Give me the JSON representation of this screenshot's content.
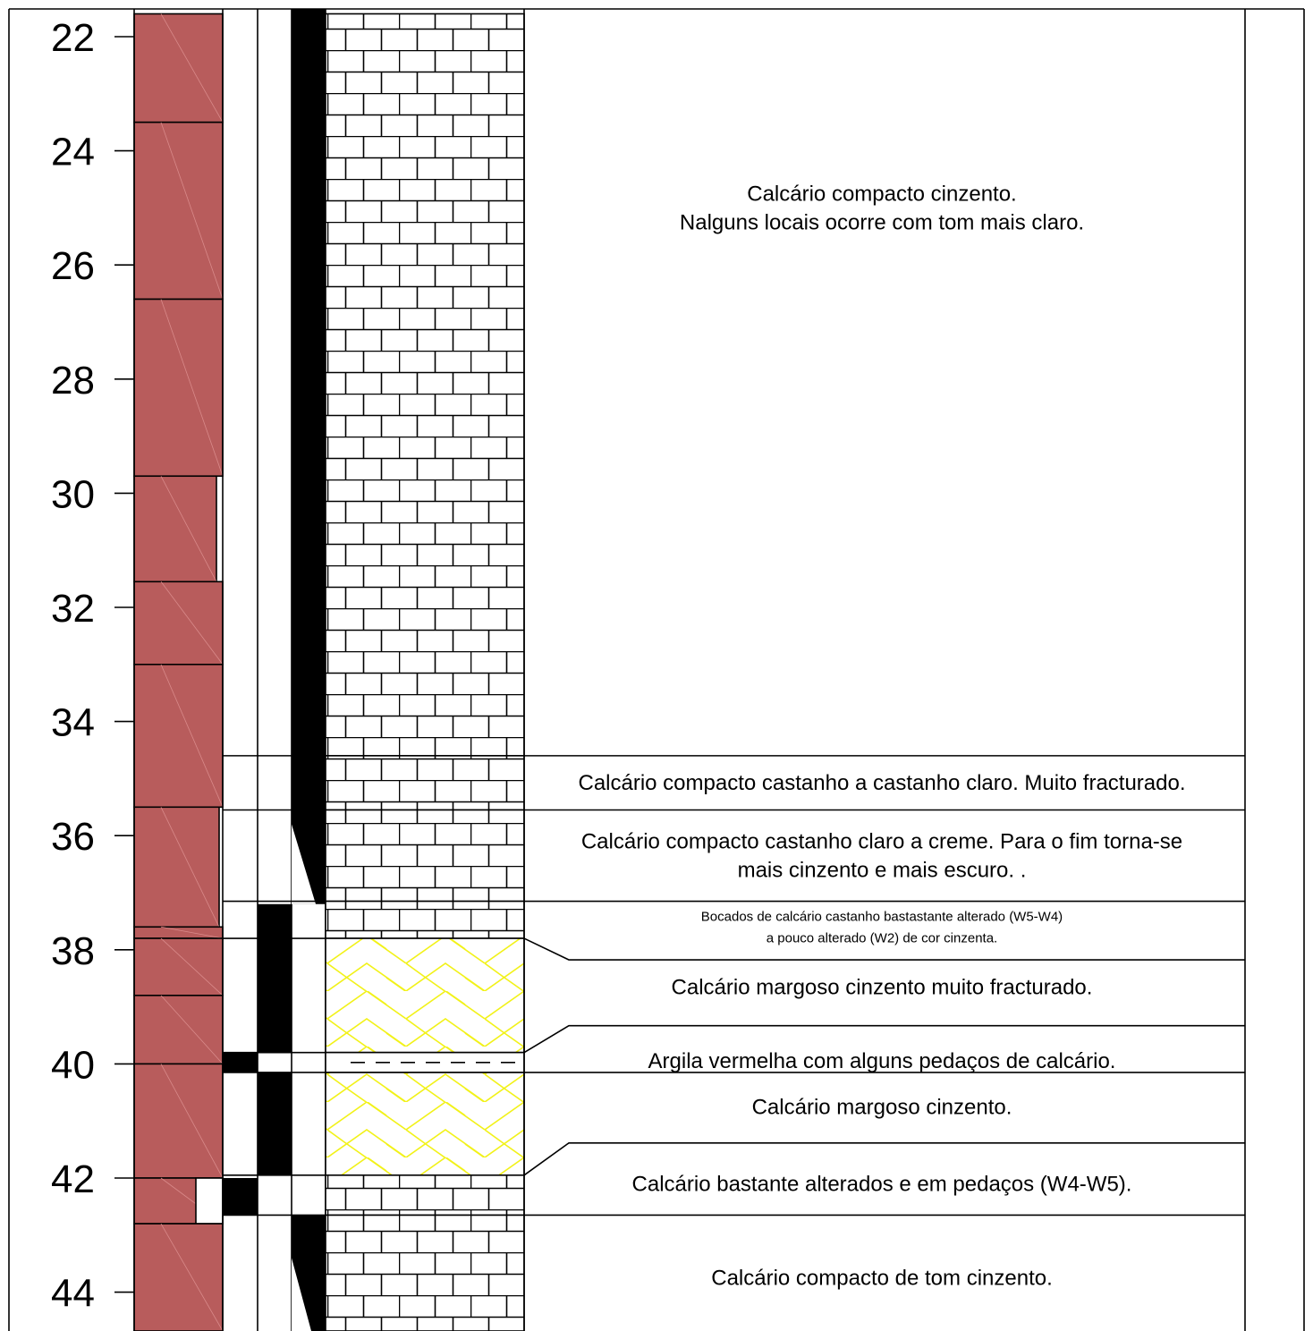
{
  "depth_scale": {
    "labels": [
      "22",
      "24",
      "26",
      "28",
      "30",
      "32",
      "34",
      "36",
      "38",
      "40",
      "42",
      "44"
    ]
  },
  "colors": {
    "core_box": "#b85c5c",
    "limestone_pattern": "#000000",
    "marl_pattern": "#f2f218",
    "line": "#000000"
  },
  "core_runs": [
    {
      "top": 21.6,
      "base": 23.5
    },
    {
      "top": 23.5,
      "base": 26.6
    },
    {
      "top": 26.6,
      "base": 29.7
    },
    {
      "top": 29.7,
      "base": 31.55
    },
    {
      "top": 31.55,
      "base": 33.0
    },
    {
      "top": 33.0,
      "base": 35.5
    },
    {
      "top": 35.5,
      "base": 37.6
    },
    {
      "top": 37.6,
      "base": 37.8
    },
    {
      "top": 37.8,
      "base": 38.8
    },
    {
      "top": 38.8,
      "base": 40.0
    },
    {
      "top": 40.0,
      "base": 42.0
    },
    {
      "top": 42.0,
      "base": 42.8
    },
    {
      "top": 42.8,
      "base": 44.7
    }
  ],
  "layers": [
    {
      "top": 21.6,
      "base": 34.6,
      "lithology": "limestone",
      "description": [
        "Calcário compacto cinzento.",
        "Nalguns locais ocorre com tom mais claro."
      ]
    },
    {
      "top": 34.6,
      "base": 35.55,
      "lithology": "limestone",
      "description": [
        "Calcário compacto castanho a castanho claro. Muito fracturado."
      ]
    },
    {
      "top": 35.55,
      "base": 37.15,
      "lithology": "limestone",
      "description": [
        "Calcário compacto castanho claro a creme. Para o fim torna-se",
        "mais cinzento e mais escuro. ."
      ]
    },
    {
      "top": 37.15,
      "base": 37.8,
      "lithology": "limestone",
      "description_small": true,
      "description": [
        "Bocados de calcário castanho bastastante alterado (W5-W4)",
        "a pouco alterado (W2) de cor cinzenta."
      ]
    },
    {
      "top": 37.8,
      "base": 39.8,
      "lithology": "marl",
      "description": [
        "Calcário margoso cinzento muito fracturado."
      ]
    },
    {
      "top": 39.8,
      "base": 40.15,
      "lithology": "clay",
      "description": [
        "Argila vermelha com alguns pedaços de calcário."
      ]
    },
    {
      "top": 40.15,
      "base": 41.95,
      "lithology": "marl",
      "description": [
        "Calcário margoso cinzento."
      ]
    },
    {
      "top": 41.95,
      "base": 42.65,
      "lithology": "limestone",
      "description": [
        "Calcário bastante alterados e em pedaços (W4-W5)."
      ]
    },
    {
      "top": 42.65,
      "base": 44.7,
      "lithology": "limestone",
      "description": [
        "Calcário compacto de tom cinzento."
      ]
    }
  ]
}
